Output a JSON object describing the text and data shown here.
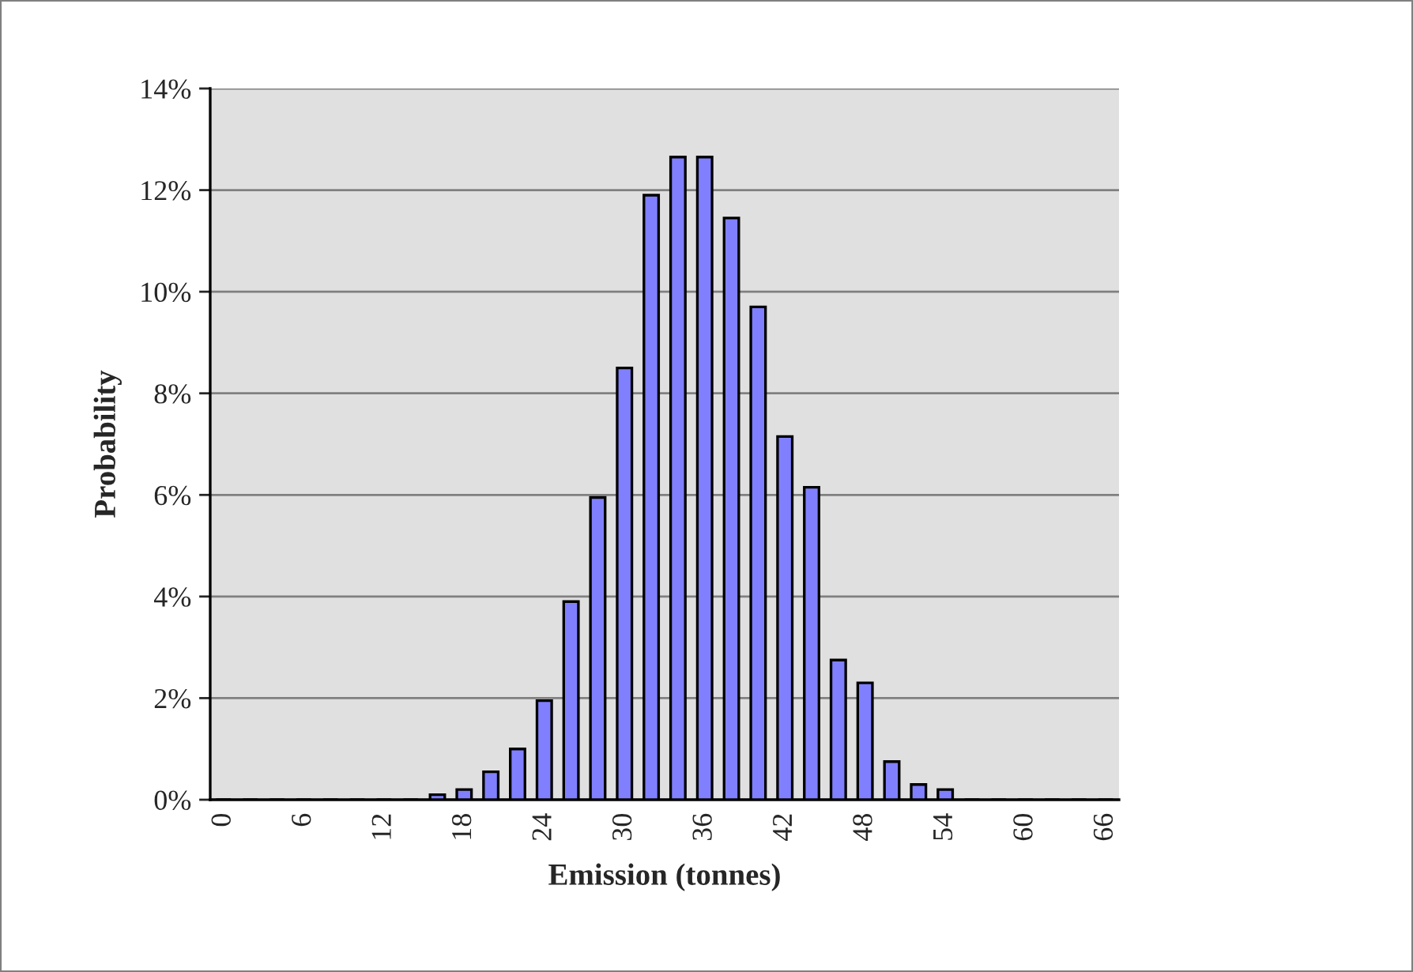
{
  "chart_data": {
    "type": "bar",
    "xlabel": "Emission (tonnes)",
    "ylabel": "Probability",
    "categories": [
      "0",
      null,
      null,
      "6",
      null,
      null,
      "12",
      null,
      null,
      "18",
      null,
      null,
      "24",
      null,
      null,
      "30",
      null,
      null,
      "36",
      null,
      null,
      "42",
      null,
      null,
      "48",
      null,
      null,
      "54",
      null,
      null,
      "60",
      null,
      null,
      "66"
    ],
    "values": [
      0,
      0,
      0,
      0,
      0,
      0,
      0,
      0,
      0.1,
      0.2,
      0.55,
      1.0,
      1.95,
      3.9,
      5.95,
      8.5,
      11.9,
      12.65,
      12.65,
      11.45,
      9.7,
      7.15,
      6.15,
      2.75,
      2.3,
      0.75,
      0.3,
      0.2,
      0,
      0,
      0,
      0,
      0,
      0
    ],
    "color": "#8080ff",
    "ylim": [
      0,
      14
    ],
    "yticks": [
      {
        "value": 0,
        "label": "0%"
      },
      {
        "value": 2,
        "label": "2%"
      },
      {
        "value": 4,
        "label": "4%"
      },
      {
        "value": 6,
        "label": "6%"
      },
      {
        "value": 8,
        "label": "8%"
      },
      {
        "value": 10,
        "label": "10%"
      },
      {
        "value": 12,
        "label": "12%"
      },
      {
        "value": 14,
        "label": "14%"
      }
    ],
    "grid": "y",
    "legend": false
  }
}
